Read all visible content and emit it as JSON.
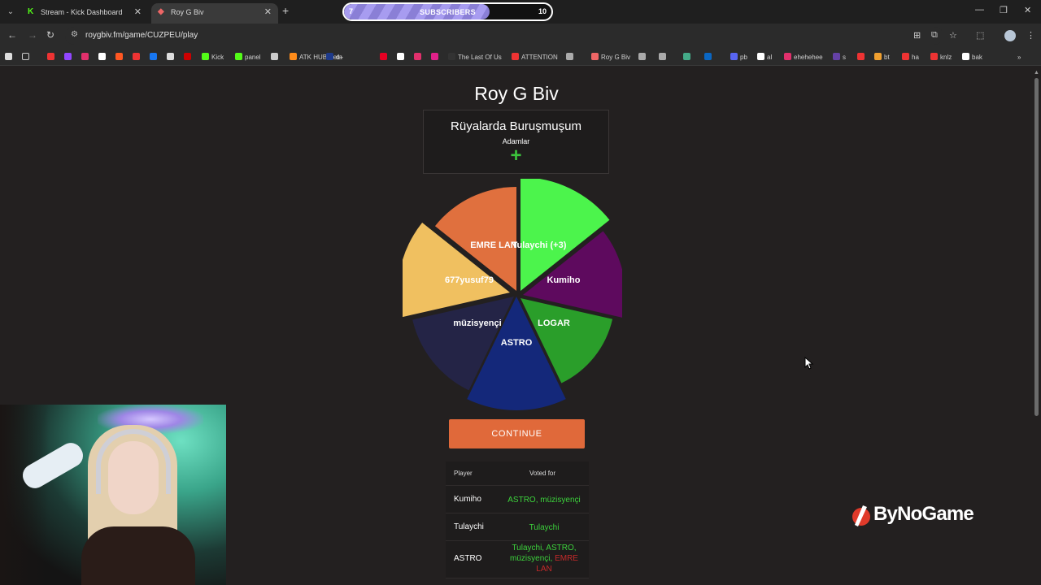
{
  "browser": {
    "tabs": [
      {
        "title": "Stream - Kick Dashboard",
        "favicon": "kick-icon",
        "active": false
      },
      {
        "title": "Roy G Biv",
        "favicon": "roygbiv-icon",
        "active": true
      }
    ],
    "url": "roygbiv.fm/game/CUZPEU/play",
    "bookmarks": [
      {
        "label": "",
        "icon": "#e33"
      },
      {
        "label": "",
        "icon": "#9146ff"
      },
      {
        "label": "",
        "icon": "#e1306c"
      },
      {
        "label": "",
        "icon": "#fff"
      },
      {
        "label": "",
        "icon": "#ff5722"
      },
      {
        "label": "",
        "icon": "#e33"
      },
      {
        "label": "",
        "icon": "#1877f2"
      },
      {
        "label": "",
        "icon": "#ddd"
      },
      {
        "label": "",
        "icon": "#c00"
      },
      {
        "label": "Kick",
        "icon": "#53fc18"
      },
      {
        "label": "panel",
        "icon": "#53fc18"
      },
      {
        "label": "",
        "icon": "#ccc"
      },
      {
        "label": "ATK HUB Beta",
        "icon": "#ff8c1a"
      },
      {
        "label": "d+",
        "icon": "#1e3a8a"
      },
      {
        "label": "",
        "icon": "#e60023"
      },
      {
        "label": "",
        "icon": "#fff"
      },
      {
        "label": "",
        "icon": "#e1306c"
      },
      {
        "label": "",
        "icon": "#e0218a"
      },
      {
        "label": "The Last Of Us",
        "icon": "#333"
      },
      {
        "label": "ATTENTION",
        "icon": "#e33"
      },
      {
        "label": "",
        "icon": "#aaa"
      },
      {
        "label": "Roy G Biv",
        "icon": "#e66"
      },
      {
        "label": "",
        "icon": "#aaa"
      },
      {
        "label": "",
        "icon": "#aaa"
      },
      {
        "label": "",
        "icon": "#4a8"
      },
      {
        "label": "",
        "icon": "#0a66c2"
      },
      {
        "label": "pb",
        "icon": "#5865f2"
      },
      {
        "label": "al",
        "icon": "#fff"
      },
      {
        "label": "ehehehee",
        "icon": "#e1306c"
      },
      {
        "label": "s",
        "icon": "#6441a5"
      },
      {
        "label": "",
        "icon": "#e33"
      },
      {
        "label": "bt",
        "icon": "#f0a030"
      },
      {
        "label": "ha",
        "icon": "#e33"
      },
      {
        "label": "knlz",
        "icon": "#e33"
      },
      {
        "label": "bak",
        "icon": "#fff"
      }
    ]
  },
  "subscriber_goal": {
    "current": "7",
    "label": "SUBSCRIBERS",
    "target": "10",
    "progress": 0.7
  },
  "game": {
    "title": "Roy G Biv",
    "prompt": "Rüyalarda Buruşmuşum",
    "subtitle": "Adamlar",
    "add_symbol": "+",
    "continue_label": "CONTINUE"
  },
  "chart_data": {
    "type": "pie",
    "slices": [
      {
        "label": "Tulaychi (+3)",
        "color": "#4cf44c",
        "value": 1
      },
      {
        "label": "Kumiho",
        "color": "#5e0a5e",
        "value": 1
      },
      {
        "label": "LOGAR",
        "color": "#2a9e2a",
        "value": 1
      },
      {
        "label": "ASTRO",
        "color": "#14287a",
        "value": 1
      },
      {
        "label": "müzisyençi",
        "color": "#242446",
        "value": 1
      },
      {
        "label": "677yusuf79",
        "color": "#f0c060",
        "value": 1
      },
      {
        "label": "EMRE LAN",
        "color": "#e0703e",
        "value": 1
      }
    ]
  },
  "votes_table": {
    "headers": {
      "player": "Player",
      "voted_for": "Voted for"
    },
    "rows": [
      {
        "player": "Kumiho",
        "voted_for": "ASTRO, müzisyençi",
        "voted_for_red": ""
      },
      {
        "player": "Tulaychi",
        "voted_for": "Tulaychi",
        "voted_for_red": ""
      },
      {
        "player": "ASTRO",
        "voted_for": "Tulaychi, ASTRO, müzisyençi,",
        "voted_for_red": "EMRE LAN"
      }
    ]
  },
  "overlay": {
    "brand": "ByNoGame"
  },
  "colors": {
    "accent": "#e0693a",
    "vote_green": "#3cd23c",
    "vote_red": "#c42a2a",
    "background": "#232020"
  }
}
